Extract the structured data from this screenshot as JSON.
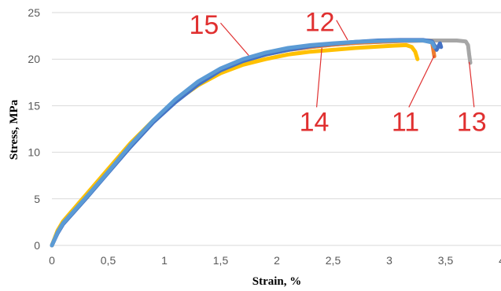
{
  "chart_data": {
    "type": "scatter",
    "xlabel": "Strain, %",
    "ylabel": "Stress, MPa",
    "xlim": [
      0,
      4
    ],
    "ylim": [
      0,
      25
    ],
    "xticks": [
      "0",
      "0,5",
      "1",
      "1,5",
      "2",
      "2,5",
      "3",
      "3,5",
      "4"
    ],
    "yticks": [
      "0",
      "5",
      "10",
      "15",
      "20",
      "25"
    ],
    "grid": "horizontal",
    "legend": "none",
    "series": [
      {
        "color": "#a6a6a6",
        "x": [
          0,
          0.05,
          0.1,
          0.3,
          0.5,
          0.7,
          0.9,
          1.1,
          1.3,
          1.5,
          1.7,
          1.9,
          2.1,
          2.3,
          2.5,
          2.7,
          2.9,
          3.1,
          3.3,
          3.5,
          3.6,
          3.68,
          3.7,
          3.71,
          3.72
        ],
        "y": [
          0,
          1.5,
          2.5,
          5.2,
          8.0,
          10.8,
          13.3,
          15.5,
          17.4,
          18.8,
          19.8,
          20.5,
          21.0,
          21.3,
          21.55,
          21.75,
          21.85,
          21.95,
          22.0,
          22.0,
          22.0,
          21.9,
          21.5,
          20.5,
          19.6
        ]
      },
      {
        "color": "#ed7d31",
        "x": [
          0,
          0.05,
          0.1,
          0.3,
          0.5,
          0.7,
          0.9,
          1.1,
          1.3,
          1.5,
          1.7,
          1.9,
          2.1,
          2.3,
          2.5,
          2.7,
          2.9,
          3.1,
          3.3,
          3.38,
          3.4
        ],
        "y": [
          0,
          1.5,
          2.5,
          5.2,
          8.0,
          10.8,
          13.3,
          15.5,
          17.4,
          18.8,
          19.8,
          20.5,
          21.0,
          21.3,
          21.55,
          21.75,
          21.85,
          21.95,
          22.0,
          21.9,
          20.3
        ]
      },
      {
        "color": "#ffc000",
        "x": [
          0,
          0.05,
          0.1,
          0.3,
          0.5,
          0.7,
          0.9,
          1.1,
          1.3,
          1.5,
          1.7,
          1.9,
          2.1,
          2.3,
          2.5,
          2.7,
          2.9,
          3.05,
          3.15,
          3.2,
          3.23,
          3.25
        ],
        "y": [
          0,
          1.6,
          2.6,
          5.4,
          8.2,
          11.0,
          13.4,
          15.5,
          17.2,
          18.5,
          19.4,
          20.0,
          20.5,
          20.8,
          21.0,
          21.2,
          21.35,
          21.45,
          21.5,
          21.3,
          20.8,
          20.0
        ]
      },
      {
        "color": "#4472c4",
        "x": [
          0,
          0.05,
          0.1,
          0.3,
          0.5,
          0.7,
          0.9,
          1.1,
          1.3,
          1.5,
          1.7,
          1.9,
          2.1,
          2.3,
          2.5,
          2.7,
          2.9,
          3.1,
          3.3,
          3.38,
          3.4,
          3.42,
          3.45,
          3.46
        ],
        "y": [
          0,
          1.3,
          2.3,
          5.0,
          7.8,
          10.6,
          13.2,
          15.4,
          17.3,
          18.8,
          19.8,
          20.5,
          21.0,
          21.4,
          21.65,
          21.85,
          22.0,
          22.05,
          22.05,
          21.9,
          21.5,
          21.0,
          21.7,
          21.3
        ]
      },
      {
        "color": "#5b9bd5",
        "x": [
          0,
          0.05,
          0.1,
          0.3,
          0.5,
          0.7,
          0.9,
          1.1,
          1.3,
          1.5,
          1.7,
          1.9,
          2.1,
          2.3,
          2.5,
          2.7,
          2.9,
          3.1,
          3.3,
          3.38,
          3.4
        ],
        "y": [
          0,
          1.4,
          2.4,
          5.1,
          7.9,
          10.8,
          13.4,
          15.7,
          17.6,
          19.0,
          20.0,
          20.7,
          21.2,
          21.5,
          21.7,
          21.85,
          21.95,
          22.0,
          22.0,
          21.8,
          21.3
        ]
      }
    ],
    "annotations": [
      {
        "text": "15",
        "color": "#e03030",
        "x": 1.22,
        "y": 22.7,
        "arrow_to": [
          1.75,
          20.4
        ]
      },
      {
        "text": "12",
        "color": "#e03030",
        "x": 2.25,
        "y": 23.0,
        "arrow_to": [
          2.63,
          22.05
        ]
      },
      {
        "text": "14",
        "color": "#e03030",
        "x": 2.2,
        "y": 12.3,
        "arrow_to": [
          2.4,
          21.2
        ]
      },
      {
        "text": "11",
        "color": "#e03030",
        "x": 3.02,
        "y": 12.3,
        "arrow_to": [
          3.4,
          20.4
        ]
      },
      {
        "text": "13",
        "color": "#e03030",
        "x": 3.6,
        "y": 12.3,
        "arrow_to": [
          3.71,
          19.7
        ]
      }
    ]
  }
}
